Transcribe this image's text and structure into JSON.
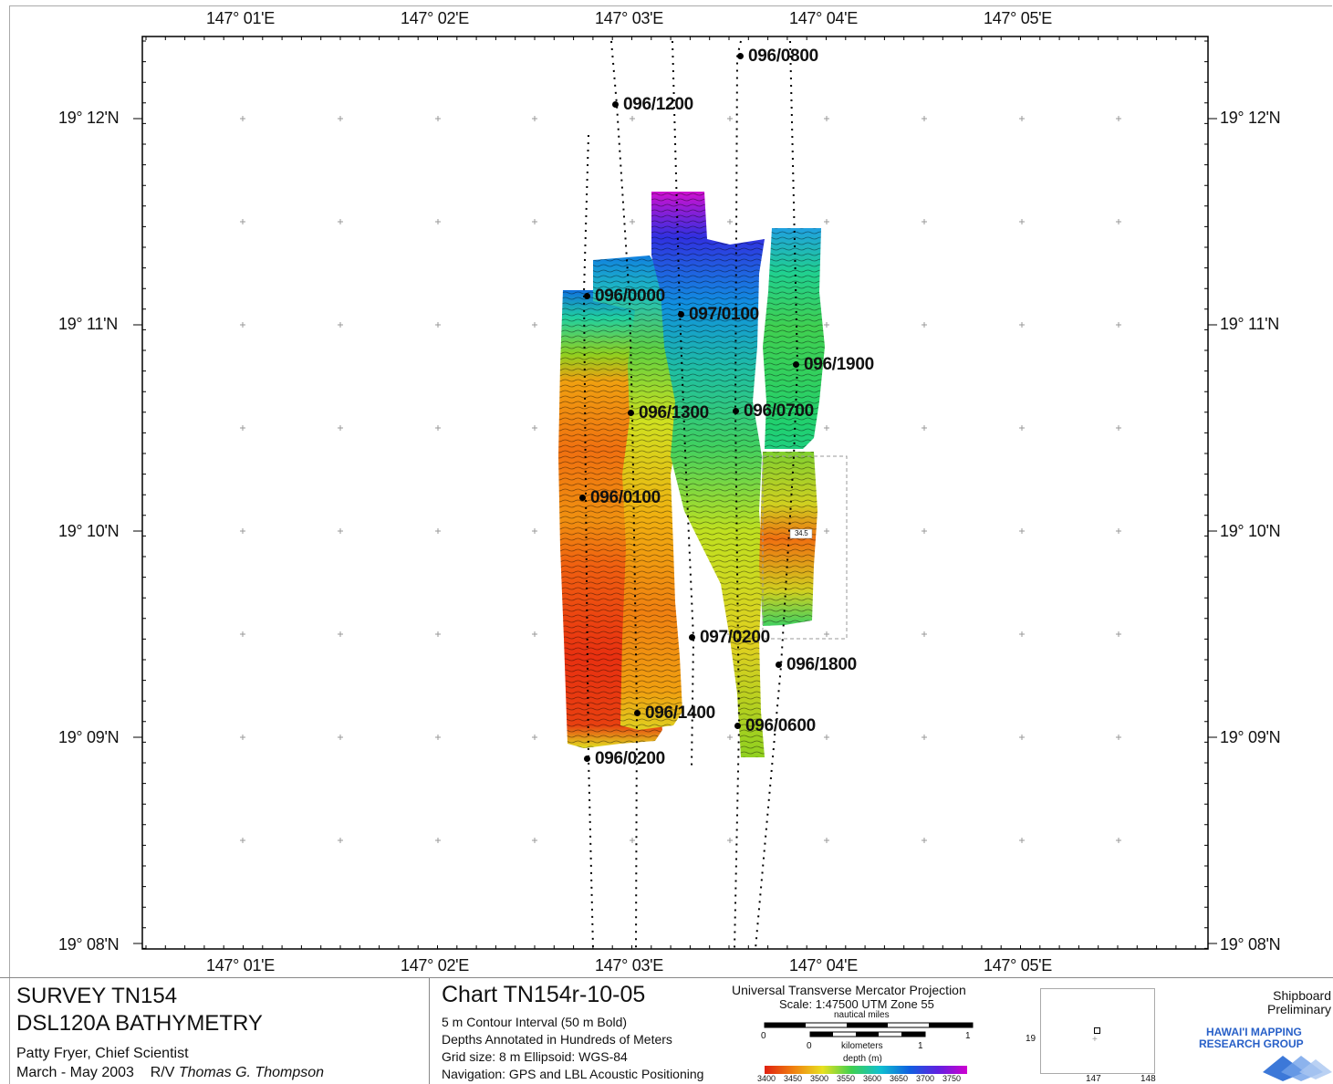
{
  "map": {
    "lon_labels": [
      "147° 01'E",
      "147° 02'E",
      "147° 03'E",
      "147° 04'E",
      "147° 05'E"
    ],
    "lat_labels": [
      "19° 12'N",
      "19° 11'N",
      "19° 10'N",
      "19° 09'N",
      "19° 08'N"
    ],
    "waypoints": [
      "096/0800",
      "096/1200",
      "096/0000",
      "097/0100",
      "096/1900",
      "096/1300",
      "096/0700",
      "096/0100",
      "097/0200",
      "096/1800",
      "096/1400",
      "096/0600",
      "096/0200"
    ],
    "depth_marker": "34.5"
  },
  "colors": {
    "deep": "#d000d0",
    "blue": "#1060e0",
    "cyan": "#10c0d0",
    "green": "#20d050",
    "yellow": "#e8e020",
    "orange": "#f08010",
    "red": "#e02010"
  },
  "footer": {
    "survey_line1": "SURVEY TN154",
    "survey_line2": "DSL120A BATHYMETRY",
    "scientist": "Patty Fryer, Chief Scientist",
    "dates": "March - May 2003",
    "vessel_prefix": "R/V",
    "vessel": "Thomas G. Thompson",
    "chart_title": "Chart TN154r-10-05",
    "contour": "5 m  Contour Interval (50 m Bold)",
    "depths": "Depths Annotated in Hundreds of Meters",
    "grid": "Grid size: 8 m    Ellipsoid: WGS-84",
    "navigation": "Navigation: GPS and LBL Acoustic Positioning",
    "projection": "Universal Transverse Mercator Projection",
    "scale": "Scale: 1:47500   UTM Zone 55",
    "nautical_miles": "nautical miles",
    "kilometers": "kilometers",
    "depth_unit": "depth (m)",
    "scale_zero": "0",
    "scale_one": "1",
    "depth_ticks": [
      "3400",
      "3450",
      "3500",
      "3550",
      "3600",
      "3650",
      "3700",
      "3750"
    ],
    "inset_lat": "19",
    "inset_lon1": "147",
    "inset_lon2": "148",
    "status1": "Shipboard",
    "status2": "Preliminary",
    "group1": "HAWAI'I MAPPING",
    "group2": "RESEARCH GROUP"
  }
}
